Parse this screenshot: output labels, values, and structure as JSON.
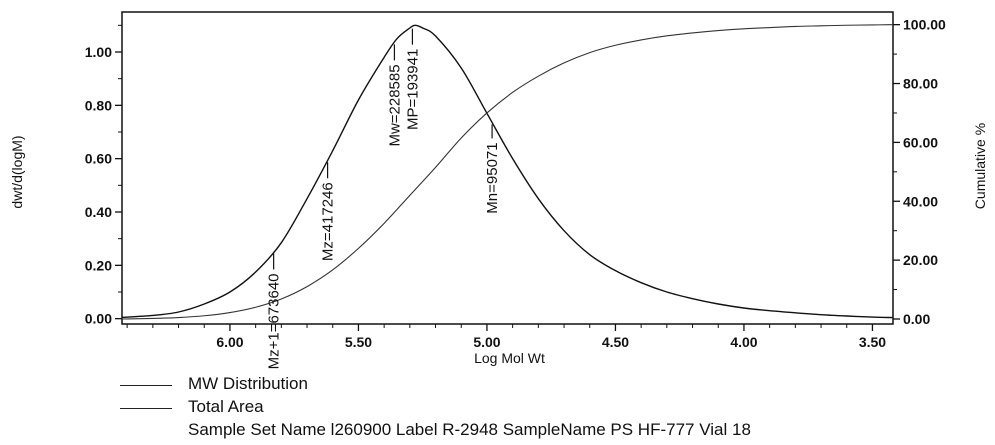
{
  "chart_data": {
    "type": "line",
    "xlabel": "Log Mol Wt",
    "ylabel_left": "dwt/d(logM)",
    "ylabel_right": "Cumulative %",
    "x_reversed": true,
    "xlim": [
      6.42,
      3.42
    ],
    "ylim_left": [
      -0.02,
      1.15
    ],
    "ylim_right": [
      -1.7,
      104.3
    ],
    "x_ticks": [
      "6.00",
      "5.50",
      "5.00",
      "4.50",
      "4.00",
      "3.50"
    ],
    "x_tick_values": [
      6.0,
      5.5,
      5.0,
      4.5,
      4.0,
      3.5
    ],
    "y_ticks_left": [
      "0.00",
      "0.20",
      "0.40",
      "0.60",
      "0.80",
      "1.00"
    ],
    "y_tick_values_left": [
      0.0,
      0.2,
      0.4,
      0.6,
      0.8,
      1.0
    ],
    "y_ticks_right": [
      "0.00",
      "20.00",
      "40.00",
      "60.00",
      "80.00",
      "100.00"
    ],
    "y_tick_values_right": [
      0,
      20,
      40,
      60,
      80,
      100
    ],
    "series": [
      {
        "name": "MW Distribution",
        "axis": "left",
        "x": [
          6.42,
          6.3,
          6.2,
          6.1,
          6.0,
          5.9,
          5.8,
          5.7,
          5.6,
          5.5,
          5.4,
          5.35,
          5.3,
          5.28,
          5.25,
          5.2,
          5.1,
          5.0,
          4.9,
          4.8,
          4.7,
          4.6,
          4.5,
          4.4,
          4.3,
          4.2,
          4.1,
          4.0,
          3.9,
          3.8,
          3.7,
          3.6,
          3.5,
          3.42
        ],
        "y": [
          0.005,
          0.012,
          0.025,
          0.055,
          0.1,
          0.175,
          0.285,
          0.45,
          0.63,
          0.82,
          0.98,
          1.05,
          1.09,
          1.1,
          1.09,
          1.06,
          0.94,
          0.77,
          0.6,
          0.45,
          0.33,
          0.24,
          0.18,
          0.135,
          0.1,
          0.075,
          0.055,
          0.04,
          0.03,
          0.022,
          0.015,
          0.01,
          0.006,
          0.004
        ]
      },
      {
        "name": "Total Area",
        "axis": "right",
        "x": [
          6.42,
          6.3,
          6.2,
          6.1,
          6.0,
          5.9,
          5.8,
          5.7,
          5.6,
          5.5,
          5.4,
          5.3,
          5.2,
          5.1,
          5.0,
          4.9,
          4.8,
          4.7,
          4.6,
          4.5,
          4.4,
          4.3,
          4.2,
          4.1,
          4.0,
          3.9,
          3.8,
          3.7,
          3.6,
          3.5,
          3.42
        ],
        "y": [
          0.0,
          0.2,
          0.5,
          1.1,
          2.2,
          4.0,
          6.8,
          11.0,
          16.7,
          24.0,
          32.5,
          42.0,
          51.5,
          61.5,
          70.0,
          77.0,
          82.5,
          87.0,
          90.5,
          93.0,
          94.8,
          96.2,
          97.2,
          98.0,
          98.6,
          99.0,
          99.4,
          99.6,
          99.8,
          99.9,
          100.0
        ]
      }
    ],
    "annotations": [
      {
        "text": "Mz+1=673640",
        "x": 5.83
      },
      {
        "text": "Mz=417246",
        "x": 5.62
      },
      {
        "text": "Mw=228585",
        "x": 5.36
      },
      {
        "text": "MP=193941",
        "x": 5.29
      },
      {
        "text": "Mn=95071",
        "x": 4.98
      }
    ]
  },
  "legend": {
    "items": [
      "MW Distribution",
      "Total Area"
    ],
    "sample_info": "Sample Set Name l260900 Label R-2948 SampleName PS HF-777 Vial 18"
  }
}
